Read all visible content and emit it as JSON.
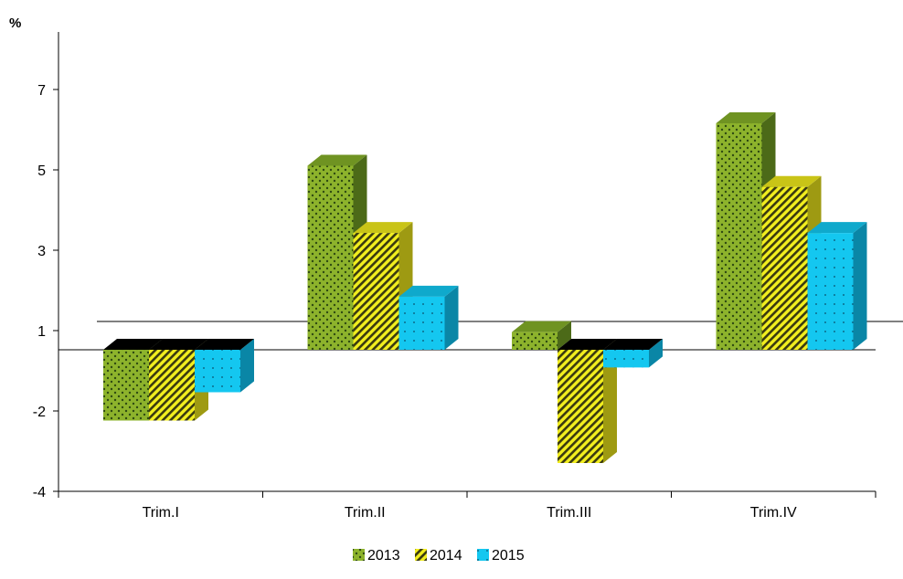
{
  "chart_data": {
    "type": "bar",
    "title": "",
    "ylabel": "%",
    "xlabel": "",
    "categories": [
      "Trim.I",
      "Trim.II",
      "Trim.III",
      "Trim.IV"
    ],
    "series": [
      {
        "name": "2013",
        "values": [
          -2.0,
          5.2,
          0.5,
          6.4
        ]
      },
      {
        "name": "2014",
        "values": [
          -2.0,
          3.3,
          -3.2,
          4.6
        ]
      },
      {
        "name": "2015",
        "values": [
          -1.2,
          1.5,
          -0.5,
          3.3
        ]
      }
    ],
    "y_ticks": [
      "7",
      "5",
      "3",
      "1",
      "-2",
      "-4"
    ],
    "legend_position": "bottom",
    "three_d": true,
    "colors": {
      "2013": {
        "base": "#8db32c",
        "dot": "#2f4a12"
      },
      "2014": {
        "base": "#f2ee1e",
        "stripe": "#3a3a10"
      },
      "2015": {
        "base": "#14c7f0",
        "dot": "#0a4f6a"
      }
    }
  }
}
